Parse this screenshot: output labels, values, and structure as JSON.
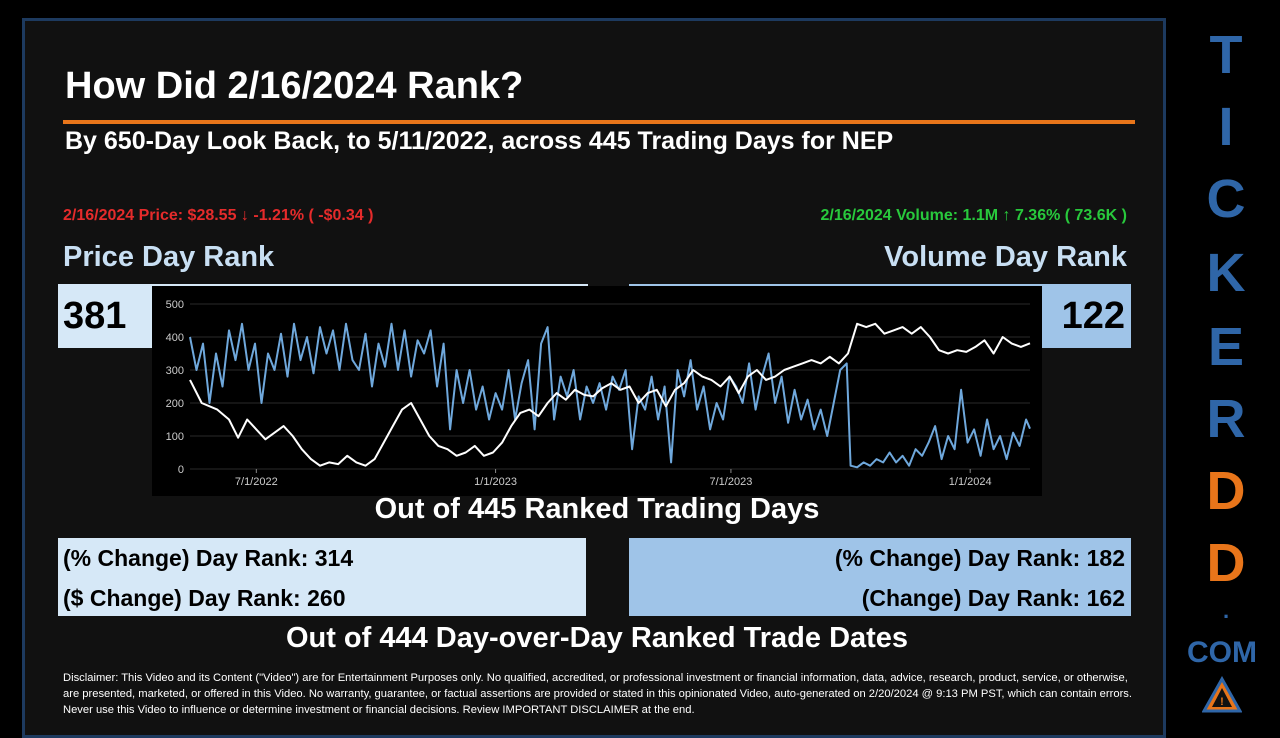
{
  "header": {
    "title": "How Did 2/16/2024 Rank?",
    "subtitle": "By 650-Day Look Back, to 5/11/2022, across 445 Trading Days for NEP"
  },
  "price_stat": "2/16/2024 Price: $28.55 ↓ -1.21% ( -$0.34 )",
  "volume_stat": "2/16/2024 Volume: 1.1M ↑ 7.36% ( 73.6K )",
  "price_rank": {
    "label": "Price Day Rank",
    "value": "381"
  },
  "volume_rank": {
    "label": "Volume Day Rank",
    "value": "122"
  },
  "caption_ranked": "Out of 445 Ranked Trading Days",
  "left_change": {
    "pct": "(% Change) Day Rank: 314",
    "dollar": "($ Change) Day Rank: 260"
  },
  "right_change": {
    "pct": "(% Change) Day Rank: 182",
    "dollar": "(Change) Day Rank: 162"
  },
  "caption_dod": "Out of 444 Day-over-Day Ranked Trade Dates",
  "disclaimer": "Disclaimer: This Video and its Content (\"Video\") are for Entertainment Purposes only. No qualified, accredited, or professional investment or financial information, data, advice, research, product, service, or otherwise, are presented, marketed, or offered in this Video. No warranty, guarantee, or factual assertions are provided or stated in this opinionated Video, auto-generated on 2/20/2024 @ 9:13 PM PST, which can contain errors. Never use this Video to influence or determine investment or financial decisions. Review IMPORTANT DISCLAIMER at the end.",
  "brand": {
    "letters": [
      "T",
      "I",
      "C",
      "K",
      "E",
      "R",
      "D",
      "D"
    ],
    "letter_colors": [
      "#2f66a8",
      "#2f66a8",
      "#2f66a8",
      "#2f66a8",
      "#2f66a8",
      "#2f66a8",
      "#e8751a",
      "#e8751a"
    ],
    "dot": ".",
    "com": "COM",
    "logo_icon": "triangle-warning-logo"
  },
  "colors": {
    "accent_orange": "#e8751a",
    "price_line": "#ffffff",
    "volume_line": "#6fa8dc",
    "down_red": "#e52b2b",
    "up_green": "#28c93c"
  },
  "chart_data": {
    "type": "line",
    "x_range": [
      "2022-05-11",
      "2024-02-16"
    ],
    "ylim": [
      0,
      500
    ],
    "yticks": [
      0,
      100,
      200,
      300,
      400,
      500
    ],
    "xticks": [
      "7/1/2022",
      "1/1/2023",
      "7/1/2023",
      "1/1/2024"
    ],
    "grid": true,
    "series": [
      {
        "key": "price",
        "color": "#ffffff",
        "points": [
          [
            "2022-05-11",
            270
          ],
          [
            "2022-05-20",
            200
          ],
          [
            "2022-06-01",
            180
          ],
          [
            "2022-06-10",
            150
          ],
          [
            "2022-06-17",
            95
          ],
          [
            "2022-06-24",
            150
          ],
          [
            "2022-07-01",
            120
          ],
          [
            "2022-07-08",
            90
          ],
          [
            "2022-07-15",
            110
          ],
          [
            "2022-07-22",
            130
          ],
          [
            "2022-07-29",
            100
          ],
          [
            "2022-08-05",
            60
          ],
          [
            "2022-08-12",
            30
          ],
          [
            "2022-08-19",
            10
          ],
          [
            "2022-08-26",
            20
          ],
          [
            "2022-09-02",
            15
          ],
          [
            "2022-09-09",
            40
          ],
          [
            "2022-09-16",
            20
          ],
          [
            "2022-09-23",
            10
          ],
          [
            "2022-09-30",
            30
          ],
          [
            "2022-10-07",
            80
          ],
          [
            "2022-10-14",
            130
          ],
          [
            "2022-10-21",
            180
          ],
          [
            "2022-10-28",
            200
          ],
          [
            "2022-11-04",
            150
          ],
          [
            "2022-11-11",
            100
          ],
          [
            "2022-11-18",
            70
          ],
          [
            "2022-11-25",
            60
          ],
          [
            "2022-12-02",
            40
          ],
          [
            "2022-12-09",
            50
          ],
          [
            "2022-12-16",
            70
          ],
          [
            "2022-12-23",
            40
          ],
          [
            "2022-12-30",
            50
          ],
          [
            "2023-01-06",
            80
          ],
          [
            "2023-01-13",
            130
          ],
          [
            "2023-01-20",
            170
          ],
          [
            "2023-01-27",
            180
          ],
          [
            "2023-02-03",
            160
          ],
          [
            "2023-02-10",
            200
          ],
          [
            "2023-02-17",
            230
          ],
          [
            "2023-02-24",
            210
          ],
          [
            "2023-03-03",
            240
          ],
          [
            "2023-03-10",
            225
          ],
          [
            "2023-03-17",
            220
          ],
          [
            "2023-03-24",
            245
          ],
          [
            "2023-03-31",
            260
          ],
          [
            "2023-04-07",
            240
          ],
          [
            "2023-04-14",
            250
          ],
          [
            "2023-04-21",
            200
          ],
          [
            "2023-04-28",
            230
          ],
          [
            "2023-05-05",
            240
          ],
          [
            "2023-05-12",
            190
          ],
          [
            "2023-05-19",
            240
          ],
          [
            "2023-05-26",
            260
          ],
          [
            "2023-06-02",
            300
          ],
          [
            "2023-06-09",
            280
          ],
          [
            "2023-06-16",
            270
          ],
          [
            "2023-06-23",
            250
          ],
          [
            "2023-06-30",
            280
          ],
          [
            "2023-07-07",
            230
          ],
          [
            "2023-07-14",
            280
          ],
          [
            "2023-07-21",
            300
          ],
          [
            "2023-07-28",
            270
          ],
          [
            "2023-08-04",
            280
          ],
          [
            "2023-08-11",
            300
          ],
          [
            "2023-08-18",
            310
          ],
          [
            "2023-08-25",
            320
          ],
          [
            "2023-09-01",
            330
          ],
          [
            "2023-09-08",
            320
          ],
          [
            "2023-09-15",
            340
          ],
          [
            "2023-09-22",
            320
          ],
          [
            "2023-09-29",
            350
          ],
          [
            "2023-10-06",
            440
          ],
          [
            "2023-10-13",
            430
          ],
          [
            "2023-10-20",
            440
          ],
          [
            "2023-10-27",
            410
          ],
          [
            "2023-11-03",
            420
          ],
          [
            "2023-11-10",
            430
          ],
          [
            "2023-11-17",
            410
          ],
          [
            "2023-11-24",
            430
          ],
          [
            "2023-12-01",
            400
          ],
          [
            "2023-12-08",
            360
          ],
          [
            "2023-12-15",
            350
          ],
          [
            "2023-12-22",
            360
          ],
          [
            "2023-12-29",
            355
          ],
          [
            "2024-01-05",
            370
          ],
          [
            "2024-01-12",
            390
          ],
          [
            "2024-01-19",
            350
          ],
          [
            "2024-01-26",
            400
          ],
          [
            "2024-02-02",
            380
          ],
          [
            "2024-02-09",
            370
          ],
          [
            "2024-02-16",
            381
          ]
        ]
      },
      {
        "key": "volume",
        "color": "#6fa8dc",
        "points": [
          [
            "2022-05-11",
            400
          ],
          [
            "2022-05-16",
            300
          ],
          [
            "2022-05-21",
            380
          ],
          [
            "2022-05-26",
            200
          ],
          [
            "2022-05-31",
            350
          ],
          [
            "2022-06-05",
            250
          ],
          [
            "2022-06-10",
            420
          ],
          [
            "2022-06-15",
            330
          ],
          [
            "2022-06-20",
            440
          ],
          [
            "2022-06-25",
            300
          ],
          [
            "2022-06-30",
            380
          ],
          [
            "2022-07-05",
            200
          ],
          [
            "2022-07-10",
            350
          ],
          [
            "2022-07-15",
            300
          ],
          [
            "2022-07-20",
            410
          ],
          [
            "2022-07-25",
            280
          ],
          [
            "2022-07-30",
            440
          ],
          [
            "2022-08-04",
            330
          ],
          [
            "2022-08-09",
            400
          ],
          [
            "2022-08-14",
            290
          ],
          [
            "2022-08-19",
            430
          ],
          [
            "2022-08-24",
            350
          ],
          [
            "2022-08-29",
            420
          ],
          [
            "2022-09-03",
            300
          ],
          [
            "2022-09-08",
            440
          ],
          [
            "2022-09-13",
            330
          ],
          [
            "2022-09-18",
            300
          ],
          [
            "2022-09-23",
            410
          ],
          [
            "2022-09-28",
            250
          ],
          [
            "2022-10-03",
            380
          ],
          [
            "2022-10-08",
            310
          ],
          [
            "2022-10-13",
            440
          ],
          [
            "2022-10-18",
            300
          ],
          [
            "2022-10-23",
            420
          ],
          [
            "2022-10-28",
            280
          ],
          [
            "2022-11-02",
            390
          ],
          [
            "2022-11-07",
            350
          ],
          [
            "2022-11-12",
            420
          ],
          [
            "2022-11-17",
            250
          ],
          [
            "2022-11-22",
            380
          ],
          [
            "2022-11-27",
            120
          ],
          [
            "2022-12-02",
            300
          ],
          [
            "2022-12-07",
            200
          ],
          [
            "2022-12-12",
            300
          ],
          [
            "2022-12-17",
            180
          ],
          [
            "2022-12-22",
            250
          ],
          [
            "2022-12-27",
            150
          ],
          [
            "2023-01-01",
            230
          ],
          [
            "2023-01-06",
            180
          ],
          [
            "2023-01-11",
            300
          ],
          [
            "2023-01-16",
            150
          ],
          [
            "2023-01-21",
            260
          ],
          [
            "2023-01-26",
            330
          ],
          [
            "2023-01-31",
            120
          ],
          [
            "2023-02-05",
            380
          ],
          [
            "2023-02-10",
            430
          ],
          [
            "2023-02-15",
            150
          ],
          [
            "2023-02-20",
            280
          ],
          [
            "2023-02-25",
            220
          ],
          [
            "2023-03-02",
            300
          ],
          [
            "2023-03-07",
            150
          ],
          [
            "2023-03-12",
            250
          ],
          [
            "2023-03-17",
            200
          ],
          [
            "2023-03-22",
            260
          ],
          [
            "2023-03-27",
            180
          ],
          [
            "2023-04-01",
            280
          ],
          [
            "2023-04-06",
            240
          ],
          [
            "2023-04-11",
            300
          ],
          [
            "2023-04-16",
            60
          ],
          [
            "2023-04-21",
            220
          ],
          [
            "2023-04-26",
            180
          ],
          [
            "2023-05-01",
            280
          ],
          [
            "2023-05-06",
            150
          ],
          [
            "2023-05-11",
            250
          ],
          [
            "2023-05-16",
            20
          ],
          [
            "2023-05-21",
            300
          ],
          [
            "2023-05-26",
            220
          ],
          [
            "2023-05-31",
            330
          ],
          [
            "2023-06-05",
            180
          ],
          [
            "2023-06-10",
            250
          ],
          [
            "2023-06-15",
            120
          ],
          [
            "2023-06-20",
            200
          ],
          [
            "2023-06-25",
            150
          ],
          [
            "2023-06-30",
            280
          ],
          [
            "2023-07-05",
            250
          ],
          [
            "2023-07-10",
            200
          ],
          [
            "2023-07-15",
            320
          ],
          [
            "2023-07-20",
            180
          ],
          [
            "2023-07-25",
            280
          ],
          [
            "2023-07-30",
            350
          ],
          [
            "2023-08-04",
            200
          ],
          [
            "2023-08-09",
            280
          ],
          [
            "2023-08-14",
            140
          ],
          [
            "2023-08-19",
            240
          ],
          [
            "2023-08-24",
            150
          ],
          [
            "2023-08-29",
            210
          ],
          [
            "2023-09-03",
            120
          ],
          [
            "2023-09-08",
            180
          ],
          [
            "2023-09-13",
            100
          ],
          [
            "2023-09-18",
            200
          ],
          [
            "2023-09-23",
            300
          ],
          [
            "2023-09-28",
            320
          ],
          [
            "2023-10-01",
            10
          ],
          [
            "2023-10-06",
            5
          ],
          [
            "2023-10-11",
            20
          ],
          [
            "2023-10-16",
            10
          ],
          [
            "2023-10-21",
            30
          ],
          [
            "2023-10-26",
            20
          ],
          [
            "2023-10-31",
            50
          ],
          [
            "2023-11-05",
            20
          ],
          [
            "2023-11-10",
            40
          ],
          [
            "2023-11-15",
            10
          ],
          [
            "2023-11-20",
            60
          ],
          [
            "2023-11-25",
            40
          ],
          [
            "2023-11-30",
            80
          ],
          [
            "2023-12-05",
            130
          ],
          [
            "2023-12-10",
            30
          ],
          [
            "2023-12-15",
            100
          ],
          [
            "2023-12-20",
            60
          ],
          [
            "2023-12-25",
            240
          ],
          [
            "2023-12-30",
            80
          ],
          [
            "2024-01-04",
            120
          ],
          [
            "2024-01-09",
            40
          ],
          [
            "2024-01-14",
            150
          ],
          [
            "2024-01-19",
            60
          ],
          [
            "2024-01-24",
            100
          ],
          [
            "2024-01-29",
            30
          ],
          [
            "2024-02-03",
            110
          ],
          [
            "2024-02-08",
            70
          ],
          [
            "2024-02-13",
            150
          ],
          [
            "2024-02-16",
            122
          ]
        ]
      }
    ]
  }
}
